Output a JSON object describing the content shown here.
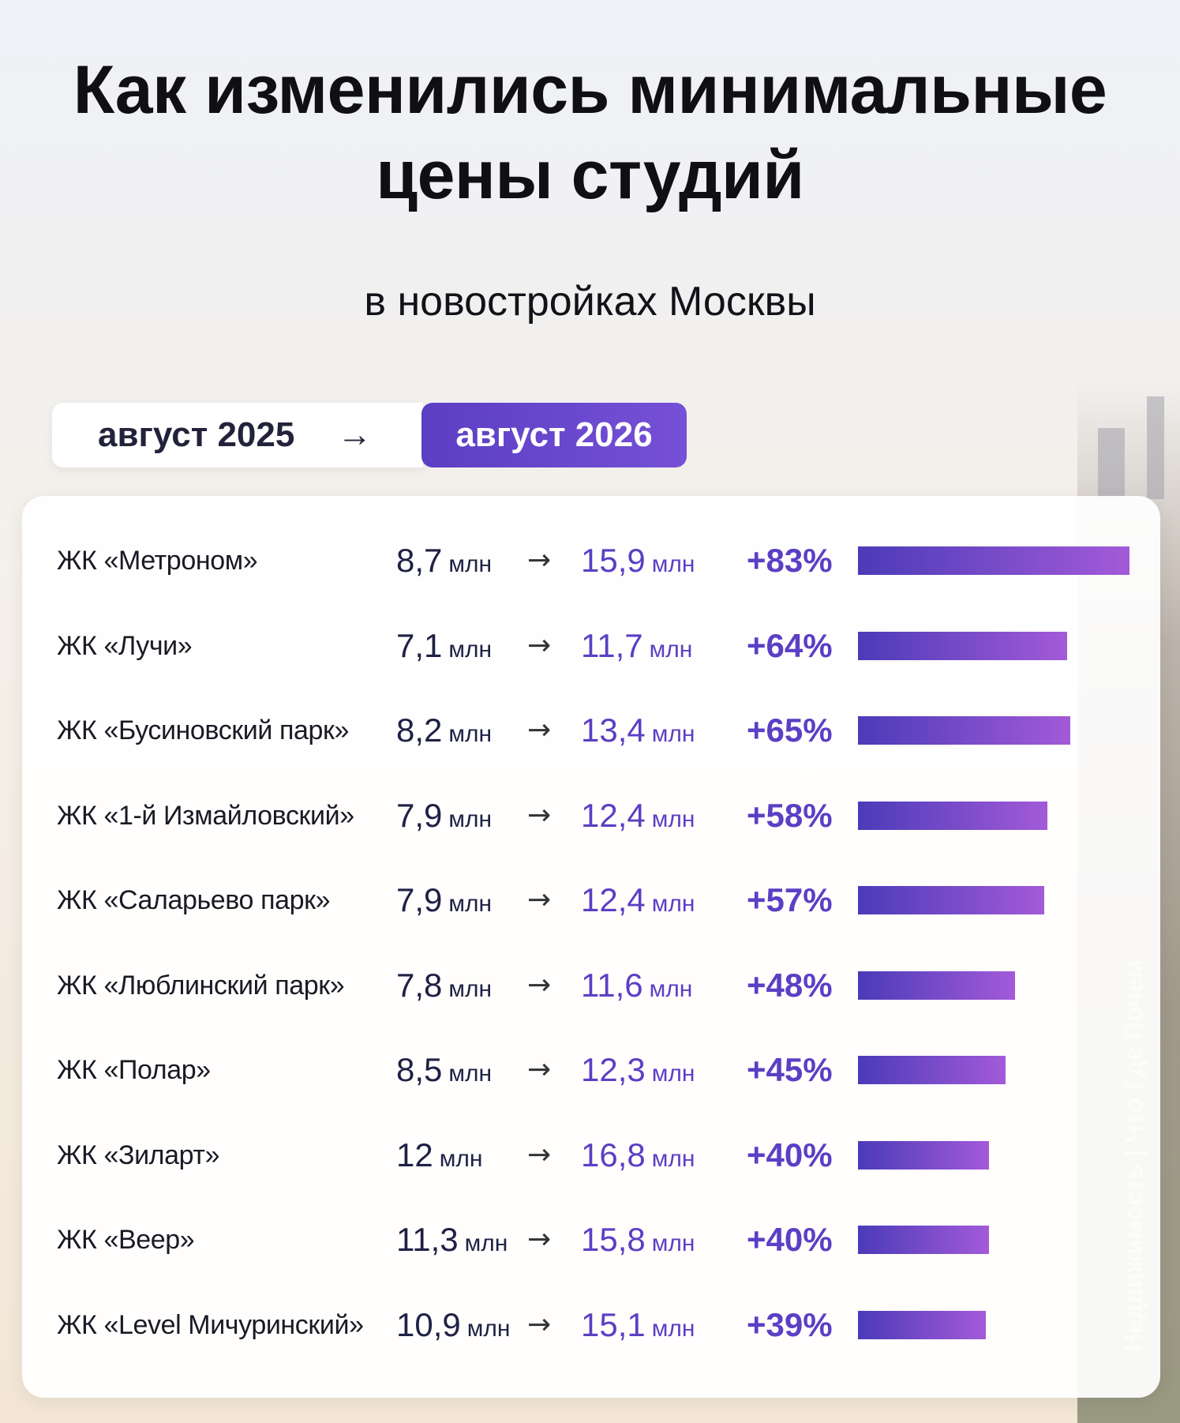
{
  "title": "Как изменились минимальные цены студий",
  "subtitle": "в новостройках Москвы",
  "period": {
    "from": "август 2025",
    "arrow": "→",
    "to": "август 2026"
  },
  "unit": "млн",
  "colors": {
    "accent": "#5b3fc4",
    "bar_start": "#4b3bb8",
    "bar_end": "#a35ad8"
  },
  "watermark": "Недвижимость | Что Где Почём",
  "chart_data": {
    "type": "bar",
    "orientation": "horizontal",
    "unit": "млн",
    "rows": [
      {
        "name": "ЖК «Метроном»",
        "old": "8,7",
        "new": "15,9",
        "pct_label": "+83%",
        "pct": 83
      },
      {
        "name": "ЖК «Лучи»",
        "old": "7,1",
        "new": "11,7",
        "pct_label": "+64%",
        "pct": 64
      },
      {
        "name": "ЖК «Бусиновский парк»",
        "old": "8,2",
        "new": "13,4",
        "pct_label": "+65%",
        "pct": 65
      },
      {
        "name": "ЖК «1-й Измайловский»",
        "old": "7,9",
        "new": "12,4",
        "pct_label": "+58%",
        "pct": 58
      },
      {
        "name": "ЖК «Саларьево парк»",
        "old": "7,9",
        "new": "12,4",
        "pct_label": "+57%",
        "pct": 57
      },
      {
        "name": "ЖК «Люблинский парк»",
        "old": "7,8",
        "new": "11,6",
        "pct_label": "+48%",
        "pct": 48
      },
      {
        "name": "ЖК «Полар»",
        "old": "8,5",
        "new": "12,3",
        "pct_label": "+45%",
        "pct": 45
      },
      {
        "name": "ЖК «Зиларт»",
        "old": "12",
        "new": "16,8",
        "pct_label": "+40%",
        "pct": 40
      },
      {
        "name": "ЖК «Веер»",
        "old": "11,3",
        "new": "15,8",
        "pct_label": "+40%",
        "pct": 40
      },
      {
        "name": "ЖК «Level Мичуринский»",
        "old": "10,9",
        "new": "15,1",
        "pct_label": "+39%",
        "pct": 39
      }
    ]
  }
}
